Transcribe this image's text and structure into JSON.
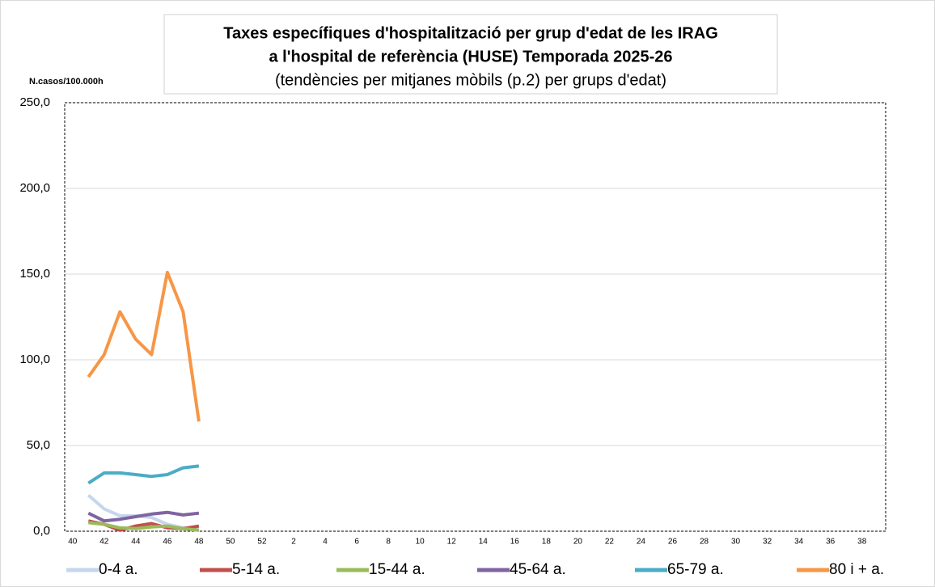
{
  "chart_data": {
    "type": "line",
    "title": [
      "Taxes específiques d'hospitalització per grup d'edat de les IRAG",
      "a l'hospital de referència (HUSE) Temporada 2025-26"
    ],
    "subtitle": "(tendències per mitjanes mòbils (p.2) per grups d'edat)",
    "y_label": "N.casos/100.000h",
    "categories": [
      "40",
      null,
      "42",
      null,
      "44",
      null,
      "46",
      null,
      "48",
      null,
      "50",
      null,
      "52",
      null,
      "2",
      null,
      "4",
      null,
      "6",
      null,
      "8",
      null,
      "10",
      null,
      "12",
      null,
      "14",
      null,
      "16",
      null,
      "18",
      null,
      "20",
      null,
      "22",
      null,
      "24",
      null,
      "26",
      null,
      "28",
      null,
      "30",
      null,
      "32",
      null,
      "34",
      null,
      "36",
      null,
      "38",
      null
    ],
    "ylim": [
      0,
      250
    ],
    "yticks": [
      {
        "value": 0,
        "label": "0,0"
      },
      {
        "value": 50,
        "label": "50,0"
      },
      {
        "value": 100,
        "label": "100,0"
      },
      {
        "value": 150,
        "label": "150,0"
      },
      {
        "value": 200,
        "label": "200,0"
      },
      {
        "value": 250,
        "label": "250,0"
      }
    ],
    "grid": true,
    "legend": "bottom",
    "series": [
      {
        "name": "0-4 a.",
        "color": "#c5d6ee",
        "values": [
          null,
          21,
          13,
          9,
          9,
          8,
          4,
          2,
          1,
          null,
          null,
          null,
          null,
          null,
          null,
          null,
          null,
          null,
          null,
          null,
          null,
          null,
          null,
          null,
          null,
          null,
          null,
          null,
          null,
          null,
          null,
          null,
          null,
          null,
          null,
          null,
          null,
          null,
          null,
          null,
          null,
          null,
          null,
          null,
          null,
          null,
          null,
          null,
          null,
          null,
          null,
          null
        ]
      },
      {
        "name": "5-14 a.",
        "color": "#c0504d",
        "values": [
          null,
          6,
          4,
          0.5,
          3,
          4.5,
          2,
          1.5,
          3,
          null,
          null,
          null,
          null,
          null,
          null,
          null,
          null,
          null,
          null,
          null,
          null,
          null,
          null,
          null,
          null,
          null,
          null,
          null,
          null,
          null,
          null,
          null,
          null,
          null,
          null,
          null,
          null,
          null,
          null,
          null,
          null,
          null,
          null,
          null,
          null,
          null,
          null,
          null,
          null,
          null,
          null,
          null
        ]
      },
      {
        "name": "15-44 a.",
        "color": "#9bbb59",
        "values": [
          null,
          5,
          4,
          2,
          1.5,
          2.5,
          3,
          1.5,
          0.5,
          null,
          null,
          null,
          null,
          null,
          null,
          null,
          null,
          null,
          null,
          null,
          null,
          null,
          null,
          null,
          null,
          null,
          null,
          null,
          null,
          null,
          null,
          null,
          null,
          null,
          null,
          null,
          null,
          null,
          null,
          null,
          null,
          null,
          null,
          null,
          null,
          null,
          null,
          null,
          null,
          null,
          null,
          null
        ]
      },
      {
        "name": "45-64 a.",
        "color": "#8064a2",
        "values": [
          null,
          10.5,
          6,
          7,
          8.5,
          10,
          11,
          9.5,
          10.5,
          null,
          null,
          null,
          null,
          null,
          null,
          null,
          null,
          null,
          null,
          null,
          null,
          null,
          null,
          null,
          null,
          null,
          null,
          null,
          null,
          null,
          null,
          null,
          null,
          null,
          null,
          null,
          null,
          null,
          null,
          null,
          null,
          null,
          null,
          null,
          null,
          null,
          null,
          null,
          null,
          null,
          null,
          null
        ]
      },
      {
        "name": "65-79 a.",
        "color": "#4bacc6",
        "values": [
          null,
          28,
          34,
          34,
          33,
          32,
          33,
          37,
          38,
          null,
          null,
          null,
          null,
          null,
          null,
          null,
          null,
          null,
          null,
          null,
          null,
          null,
          null,
          null,
          null,
          null,
          null,
          null,
          null,
          null,
          null,
          null,
          null,
          null,
          null,
          null,
          null,
          null,
          null,
          null,
          null,
          null,
          null,
          null,
          null,
          null,
          null,
          null,
          null,
          null,
          null,
          null
        ]
      },
      {
        "name": "80 i + a.",
        "color": "#f79646",
        "values": [
          null,
          90,
          103,
          128,
          112,
          103,
          151,
          128,
          64,
          null,
          null,
          null,
          null,
          null,
          null,
          null,
          null,
          null,
          null,
          null,
          null,
          null,
          null,
          null,
          null,
          null,
          null,
          null,
          null,
          null,
          null,
          null,
          null,
          null,
          null,
          null,
          null,
          null,
          null,
          null,
          null,
          null,
          null,
          null,
          null,
          null,
          null,
          null,
          null,
          null,
          null,
          null
        ]
      }
    ]
  }
}
